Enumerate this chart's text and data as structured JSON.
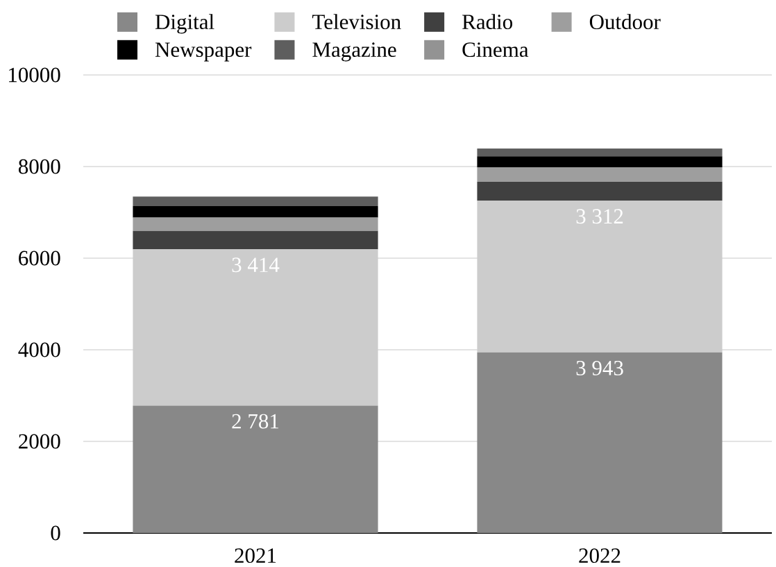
{
  "chart_data": {
    "type": "bar",
    "stacked": true,
    "categories": [
      "2021",
      "2022"
    ],
    "series": [
      {
        "name": "Digital",
        "color": "#888888",
        "values": [
          2781,
          3943
        ],
        "value_labels": [
          "2 781",
          "3 943"
        ]
      },
      {
        "name": "Television",
        "color": "#cccccc",
        "values": [
          3414,
          3312
        ],
        "value_labels": [
          "3 414",
          "3 312"
        ]
      },
      {
        "name": "Radio",
        "color": "#404040",
        "values": [
          400,
          410
        ]
      },
      {
        "name": "Outdoor",
        "color": "#9e9e9e",
        "values": [
          290,
          320
        ]
      },
      {
        "name": "Newspaper",
        "color": "#000000",
        "values": [
          250,
          240
        ]
      },
      {
        "name": "Magazine",
        "color": "#5e5e5e",
        "values": [
          210,
          170
        ]
      },
      {
        "name": "Cinema",
        "color": "#939393",
        "values": [
          null,
          null
        ]
      }
    ],
    "ylim": [
      0,
      10000
    ],
    "yticks": [
      0,
      2000,
      4000,
      6000,
      8000,
      10000
    ],
    "grid": "y",
    "legend": "top"
  }
}
